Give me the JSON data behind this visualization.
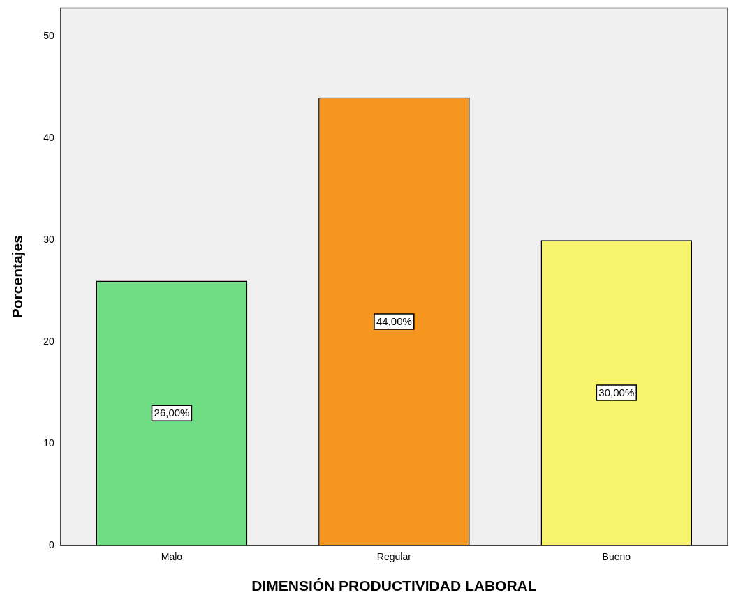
{
  "chart_data": {
    "type": "bar",
    "xlabel": "DIMENSIÓN PRODUCTIVIDAD LABORAL",
    "ylabel": "Porcentajes",
    "categories": [
      "Malo",
      "Regular",
      "Bueno"
    ],
    "values": [
      26,
      44,
      30
    ],
    "colors": [
      "#70dc84",
      "#f7961e",
      "#f8f46e"
    ],
    "value_labels": [
      "26,00%",
      "44,00%",
      "30,00%"
    ],
    "ylim": [
      0,
      52.8
    ],
    "yticks": [
      0,
      10,
      20,
      30,
      40,
      50
    ],
    "grid": false,
    "legend": false
  }
}
